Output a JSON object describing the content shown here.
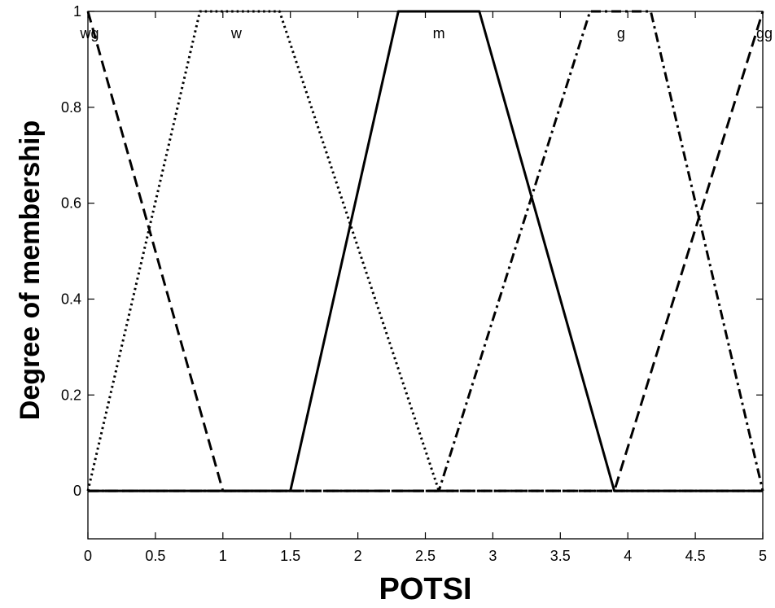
{
  "chart_data": {
    "type": "line",
    "title": "",
    "xlabel": "POTSI",
    "ylabel": "Degree of membership",
    "xlim": [
      0,
      5
    ],
    "ylim": [
      -0.1,
      1
    ],
    "xticks": [
      0,
      0.5,
      1,
      1.5,
      2,
      2.5,
      3,
      3.5,
      4,
      4.5,
      5
    ],
    "xtick_labels": [
      "0",
      "0.5",
      "1",
      "1.5",
      "2",
      "2.5",
      "3",
      "3.5",
      "4",
      "4.5",
      "5"
    ],
    "yticks": [
      0,
      0.2,
      0.4,
      0.6,
      0.8,
      1
    ],
    "ytick_labels": [
      "0",
      "0.2",
      "0.4",
      "0.6",
      "0.8",
      "1"
    ],
    "grid": false,
    "line_color": "#000000",
    "series": [
      {
        "name": "wg",
        "style": "dashed",
        "x": [
          0,
          1,
          5
        ],
        "y": [
          1,
          0,
          0
        ]
      },
      {
        "name": "w",
        "style": "dotted",
        "x": [
          0,
          0.83,
          1.42,
          2.6,
          5
        ],
        "y": [
          0,
          1,
          1,
          0,
          0
        ]
      },
      {
        "name": "m",
        "style": "solid",
        "x": [
          0,
          1.5,
          2.3,
          2.9,
          3.9,
          5
        ],
        "y": [
          0,
          0,
          1,
          1,
          0,
          0
        ]
      },
      {
        "name": "g",
        "style": "dashdot",
        "x": [
          0,
          2.6,
          3.72,
          4.17,
          5
        ],
        "y": [
          0,
          0,
          1,
          1,
          0
        ]
      },
      {
        "name": "gg",
        "style": "dashed",
        "x": [
          0,
          3.9,
          5
        ],
        "y": [
          0,
          0,
          1
        ]
      }
    ],
    "mf_labels": [
      {
        "text": "wg",
        "x": 0.0
      },
      {
        "text": "w",
        "x": 1.1
      },
      {
        "text": "m",
        "x": 2.6
      },
      {
        "text": "g",
        "x": 3.95
      },
      {
        "text": "gg",
        "x": 5.0
      }
    ]
  }
}
